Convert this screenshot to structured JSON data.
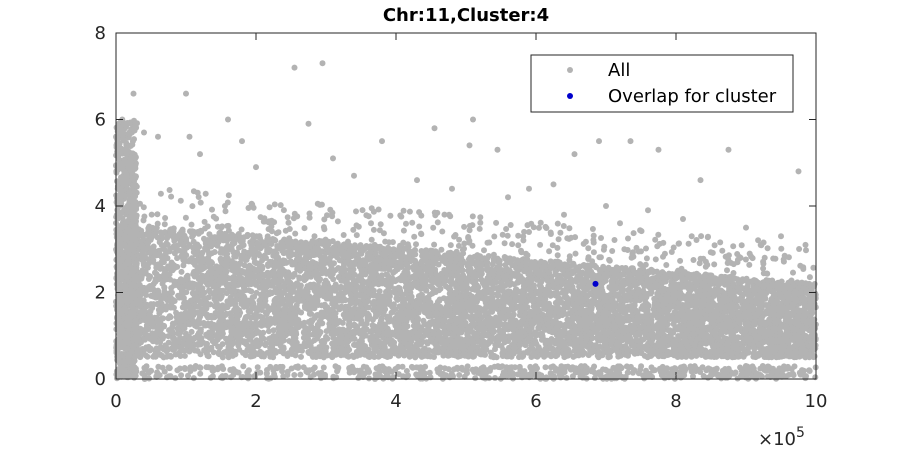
{
  "chart_data": {
    "type": "scatter",
    "title": "Chr:11,Cluster:4",
    "xlabel": "",
    "ylabel": "",
    "xlim": [
      0,
      1000000
    ],
    "ylim": [
      0,
      8
    ],
    "x_ticks": [
      0,
      2,
      4,
      6,
      8,
      10
    ],
    "y_ticks": [
      0,
      2,
      4,
      6,
      8
    ],
    "x_exponent_base": "×10",
    "x_exponent_power": "5",
    "legend_position": "top-right",
    "grid": false,
    "series": [
      {
        "name": "All",
        "color": "#b3b3b3",
        "points": [
          [
            25000,
            6.6
          ],
          [
            40000,
            5.7
          ],
          [
            60000,
            5.6
          ],
          [
            100000,
            6.6
          ],
          [
            105000,
            5.6
          ],
          [
            160000,
            6.0
          ],
          [
            180000,
            5.5
          ],
          [
            255000,
            7.2
          ],
          [
            295000,
            7.3
          ],
          [
            275000,
            5.9
          ],
          [
            310000,
            5.1
          ],
          [
            380000,
            5.5
          ],
          [
            455000,
            5.8
          ],
          [
            510000,
            6.0
          ],
          [
            505000,
            5.4
          ],
          [
            545000,
            5.3
          ],
          [
            590000,
            4.4
          ],
          [
            625000,
            4.5
          ],
          [
            655000,
            5.2
          ],
          [
            690000,
            5.5
          ],
          [
            735000,
            5.5
          ],
          [
            775000,
            5.3
          ],
          [
            835000,
            4.6
          ],
          [
            875000,
            5.3
          ],
          [
            975000,
            4.8
          ],
          [
            120000,
            5.2
          ],
          [
            200000,
            4.9
          ],
          [
            340000,
            4.7
          ],
          [
            430000,
            4.6
          ],
          [
            480000,
            4.4
          ],
          [
            560000,
            4.2
          ],
          [
            700000,
            4.0
          ],
          [
            760000,
            3.9
          ],
          [
            810000,
            3.7
          ],
          [
            900000,
            3.5
          ],
          [
            950000,
            3.3
          ],
          [
            985000,
            3.1
          ],
          [
            720000,
            3.6
          ],
          [
            640000,
            3.8
          ],
          [
            590000,
            3.4
          ]
        ]
      },
      {
        "name": "Overlap for cluster",
        "color": "#0000cc",
        "points": [
          [
            685000,
            2.2
          ]
        ]
      }
    ]
  }
}
